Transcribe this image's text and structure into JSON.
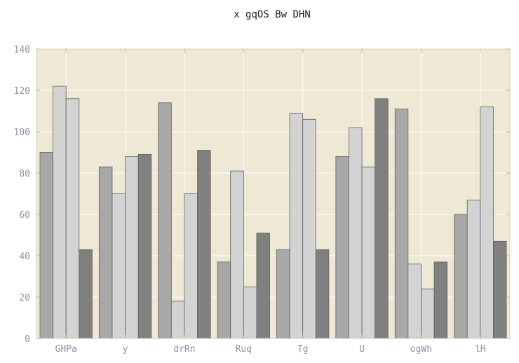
{
  "chart_data": {
    "type": "bar",
    "title": "x gqOS Bw DHN",
    "xlabel": "",
    "ylabel": "",
    "ylim": [
      0,
      140
    ],
    "yticks": [
      0,
      20,
      40,
      60,
      80,
      100,
      120,
      140
    ],
    "grid": true,
    "legend": "none",
    "categories": [
      "GHPa",
      "y",
      "drRn",
      "Ruq",
      "Tg",
      "U",
      "ogWh",
      "lH"
    ],
    "series": [
      {
        "color": "#a8a8a8",
        "values": [
          90,
          83,
          114,
          37,
          43,
          88,
          111,
          60
        ]
      },
      {
        "color": "#d3d3d3",
        "values": [
          122,
          70,
          18,
          81,
          109,
          102,
          36,
          67
        ]
      },
      {
        "color": "#d3d3d3",
        "values": [
          116,
          88,
          70,
          25,
          106,
          83,
          24,
          112
        ]
      },
      {
        "color": "#808080",
        "values": [
          43,
          89,
          91,
          51,
          43,
          116,
          37,
          47
        ]
      }
    ],
    "background_color": "#efe8d5"
  }
}
